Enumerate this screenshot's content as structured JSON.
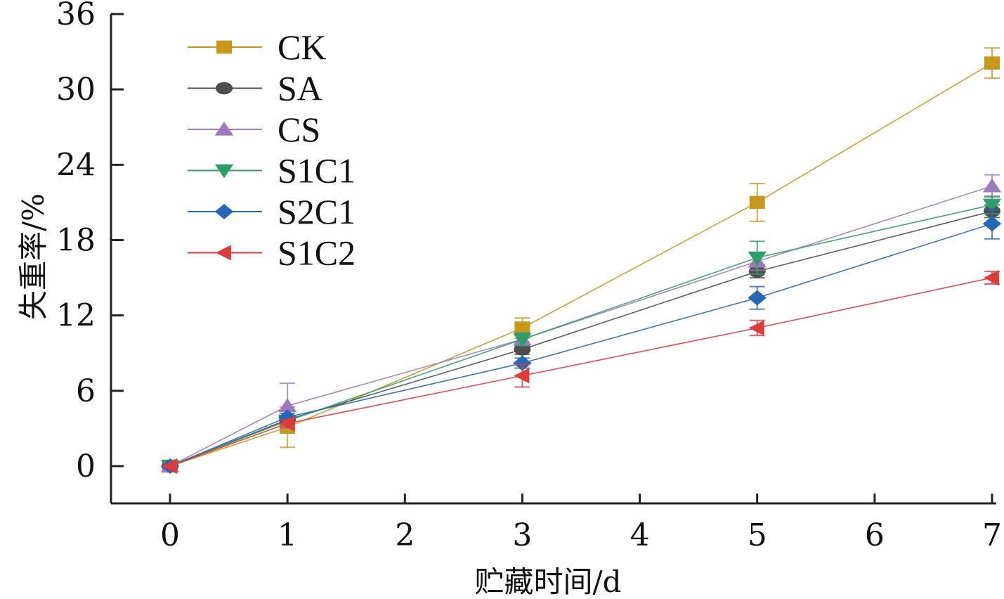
{
  "chart_data": {
    "type": "line",
    "title": "",
    "xlabel": "贮藏时间/d",
    "ylabel": "失重率/%",
    "xlim": [
      -0.5,
      7
    ],
    "ylim": [
      -3,
      36
    ],
    "xticks": [
      "0",
      "1",
      "2",
      "3",
      "4",
      "5",
      "6",
      "7"
    ],
    "yticks": [
      "0",
      "6",
      "12",
      "18",
      "24",
      "30",
      "36"
    ],
    "grid": false,
    "legend_position": "top-left",
    "x": [
      0,
      1,
      3,
      5,
      7
    ],
    "series": [
      {
        "name": "CK",
        "color": "#C9981A",
        "marker": "square",
        "values": [
          0,
          3.1,
          11.0,
          21.0,
          32.1
        ],
        "errors": [
          0,
          1.6,
          0.8,
          1.5,
          1.2
        ]
      },
      {
        "name": "SA",
        "color": "#4D4D4D",
        "marker": "circle",
        "values": [
          0,
          3.7,
          9.3,
          15.5,
          20.3
        ],
        "errors": [
          0,
          0.3,
          0.4,
          0.5,
          0.5
        ]
      },
      {
        "name": "CS",
        "color": "#9B7BBF",
        "marker": "triangle-up",
        "values": [
          0,
          4.8,
          10.1,
          16.3,
          22.3
        ],
        "errors": [
          0,
          1.8,
          0.5,
          0.7,
          0.9
        ]
      },
      {
        "name": "S1C1",
        "color": "#2E9E68",
        "marker": "triangle-down",
        "values": [
          0,
          3.6,
          10.1,
          16.6,
          20.8
        ],
        "errors": [
          0,
          0.3,
          0.5,
          1.3,
          0.7
        ]
      },
      {
        "name": "S2C1",
        "color": "#2466B8",
        "marker": "diamond",
        "values": [
          0,
          3.9,
          8.2,
          13.4,
          19.3
        ],
        "errors": [
          0,
          0.3,
          0.4,
          0.9,
          1.2
        ]
      },
      {
        "name": "S1C2",
        "color": "#E03A3A",
        "marker": "triangle-left",
        "values": [
          0,
          3.4,
          7.2,
          11.0,
          15.0
        ],
        "errors": [
          0,
          0.3,
          0.9,
          0.6,
          0.5
        ]
      }
    ]
  }
}
